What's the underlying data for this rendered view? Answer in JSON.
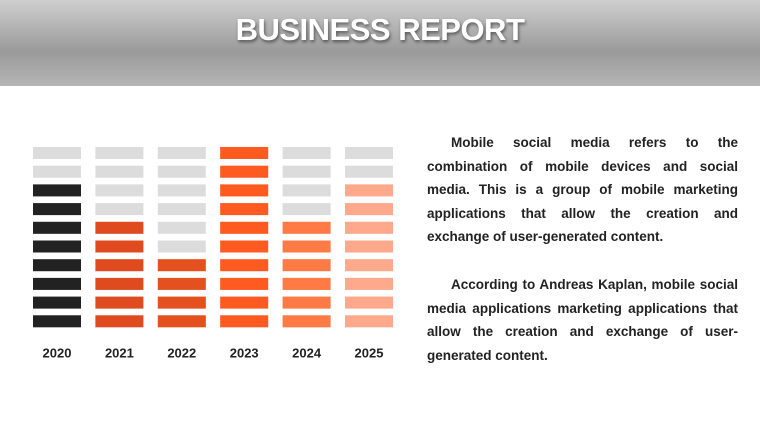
{
  "header": {
    "title": "BUSINESS REPORT"
  },
  "chart_data": {
    "type": "pictogram",
    "categories": [
      "2020",
      "2021",
      "2022",
      "2023",
      "2024",
      "2025"
    ],
    "values": [
      8,
      6,
      4,
      10,
      6,
      8
    ],
    "colors": [
      "#222222",
      "#e04a1f",
      "#e5501f",
      "#ff5a1f",
      "#ff7a45",
      "#ffa98c"
    ],
    "ylim": [
      0,
      10
    ]
  },
  "paragraphs": [
    "Mobile social media refers to the combination of mobile devices and social media. This is a group of mobile marketing applications that allow the creation and exchange of user-generated content.",
    "According to Andreas Kaplan, mobile social media applications marketing applications that allow the creation and exchange of user-generated content."
  ]
}
